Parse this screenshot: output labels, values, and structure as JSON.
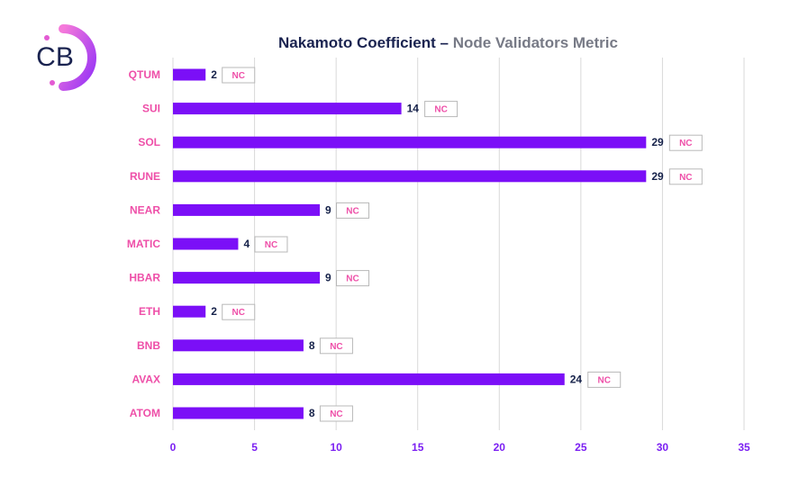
{
  "logo": {
    "text": "CB"
  },
  "header": {
    "title_main": "Nakamoto Coefficient",
    "title_sep": " – ",
    "title_sub": "Node Validators Metric"
  },
  "colors": {
    "bar": "#7b0ff7",
    "category_label": "#ee4fa8",
    "value_label": "#16224a",
    "tick_label": "#7b1ff2",
    "grid": "#d9d9d9",
    "nc_border": "#b8b8b8"
  },
  "chart_data": {
    "type": "bar",
    "orientation": "horizontal",
    "title": "Nakamoto Coefficient – Node Validators Metric",
    "categories": [
      "QTUM",
      "SUI",
      "SOL",
      "RUNE",
      "NEAR",
      "MATIC",
      "HBAR",
      "ETH",
      "BNB",
      "AVAX",
      "ATOM"
    ],
    "values": [
      2,
      14,
      29,
      29,
      9,
      4,
      9,
      2,
      8,
      24,
      8
    ],
    "annotations": [
      "NC",
      "NC",
      "NC",
      "NC",
      "NC",
      "NC",
      "NC",
      "NC",
      "NC",
      "NC",
      "NC"
    ],
    "xlim": [
      0,
      35
    ],
    "xticks": [
      0,
      5,
      10,
      15,
      20,
      25,
      30,
      35
    ],
    "grid": "vertical",
    "xlabel": "",
    "ylabel": ""
  }
}
